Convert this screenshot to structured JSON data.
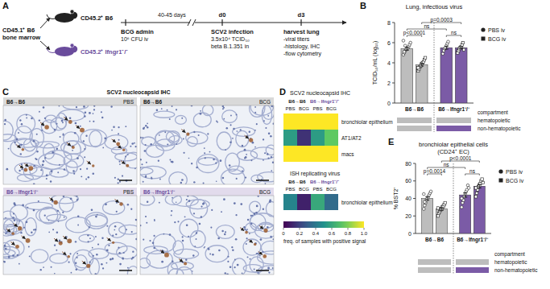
{
  "panel_labels": [
    "A",
    "B",
    "C",
    "D",
    "E"
  ],
  "schematic": {
    "donor": [
      "CD45.1⁺ B6",
      "bone marrow"
    ],
    "recipients": [
      "CD45.2⁺ B6",
      "CD45.2⁺ Ifngr1⁻/⁻"
    ],
    "interval": "40-45 days",
    "timepoints": [
      "d0",
      "d3"
    ],
    "steps": [
      {
        "title": "BCG admin",
        "lines": [
          "10⁶ CFU iv"
        ]
      },
      {
        "title": "SCV2 infection",
        "lines": [
          "3.5x10⁴ TCID₅₀",
          "beta B.1.351 in"
        ]
      },
      {
        "title": "harvest lung",
        "lines": [
          "-viral titers",
          "-histology, IHC",
          "-flow cytometry"
        ]
      }
    ]
  },
  "ihc": {
    "title": "SCV2 nucleocapsid IHC",
    "panels": [
      {
        "group": "B6→B6",
        "treatment": "PBS"
      },
      {
        "group": "B6→B6",
        "treatment": "BCG"
      },
      {
        "group": "B6→Ifngr1⁻/⁻",
        "treatment": "PBS"
      },
      {
        "group": "B6→Ifngr1⁻/⁻",
        "treatment": "BCG"
      }
    ]
  },
  "chart_data": [
    {
      "type": "bar",
      "title": "Lung, infectious virus",
      "y_label": "TCID₅₀/mL (log₁₀)",
      "categories": [
        "B6→B6",
        "B6→Ifngr1⁻/⁻"
      ],
      "series": [
        {
          "name": "PBS iv",
          "marker": "circle",
          "colors": [
            "#bdbdbd",
            "#7b5ba6"
          ],
          "values": [
            5.4,
            5.5
          ],
          "errors": [
            0.15,
            0.15
          ],
          "points": [
            [
              4.8,
              5.0,
              5.2,
              5.3,
              5.4,
              5.5,
              5.6,
              5.8,
              6.0,
              6.2,
              5.1,
              5.7
            ],
            [
              4.9,
              5.2,
              5.4,
              5.5,
              5.7,
              5.9,
              6.1
            ]
          ]
        },
        {
          "name": "BCG iv",
          "marker": "square",
          "colors": [
            "#bdbdbd",
            "#7b5ba6"
          ],
          "values": [
            3.8,
            5.5
          ],
          "errors": [
            0.13,
            0.12
          ],
          "points": [
            [
              3.2,
              3.4,
              3.6,
              3.7,
              3.9,
              4.0,
              4.1,
              4.3,
              4.5,
              3.5
            ],
            [
              5.0,
              5.2,
              5.4,
              5.5,
              5.6,
              5.8,
              6.0,
              5.3
            ]
          ]
        }
      ],
      "ylim": [
        0,
        8
      ],
      "yticks": [
        0,
        2,
        4,
        6,
        8
      ],
      "legend": "right",
      "annotations": [
        {
          "text": "p<0.0001",
          "between": [
            0,
            1
          ]
        },
        {
          "text": "ns",
          "between": [
            2,
            3
          ]
        },
        {
          "text": "ns",
          "between": [
            0,
            2
          ]
        },
        {
          "text": "p=0.0003",
          "between": [
            1,
            3
          ]
        }
      ],
      "compartment": {
        "label": "compartment",
        "rows": [
          "hematopoietic",
          "non-hematopoietic"
        ],
        "colors": [
          [
            "#bdbdbd",
            "#bdbdbd"
          ],
          [
            "#bdbdbd",
            "#7b5ba6"
          ]
        ]
      }
    },
    {
      "type": "heatmap",
      "title": "SCV2 nucleocapsid IHC",
      "groups": [
        "B6→B6",
        "B6→Ifngr1⁻/⁻"
      ],
      "categories": [
        "PBS",
        "BCG",
        "PBS",
        "BCG"
      ],
      "rows": [
        "bronchiolar epithelium",
        "AT1/AT2",
        "macs"
      ],
      "cells": [
        [
          1,
          1,
          1,
          1
        ],
        [
          0.55,
          0.15,
          0.55,
          0.75
        ],
        [
          1,
          1,
          1,
          1
        ]
      ],
      "colorbar_lim": [
        0,
        1
      ]
    },
    {
      "type": "heatmap",
      "title": "ISH replicating virus",
      "groups": [
        "B6→B6",
        "B6→Ifngr1⁻/⁻"
      ],
      "categories": [
        "PBS",
        "BCG",
        "PBS",
        "BCG"
      ],
      "rows": [
        "bronchiolar epithelium"
      ],
      "cells": [
        [
          0.45,
          0.1,
          0.6,
          0.35
        ]
      ],
      "colorbar_lim": [
        0,
        1
      ],
      "colorbar_ticks": [
        0,
        0.2,
        0.4,
        0.6,
        0.8,
        {
          "value": 1,
          "label": "1.0"
        }
      ],
      "colorbar_label": "freq. of samples with positive signal"
    },
    {
      "type": "bar",
      "title": "bronchiolar epithelial cells",
      "subtitle": "(CD24⁺ EC)",
      "y_label": "% BST2⁺",
      "categories": [
        "B6→B6",
        "B6→Ifngr1⁻/⁻"
      ],
      "series": [
        {
          "name": "PBS iv",
          "marker": "circle",
          "colors": [
            "#bdbdbd",
            "#7b5ba6"
          ],
          "values": [
            40,
            44
          ],
          "errors": [
            2,
            2.5
          ],
          "points": [
            [
              28,
              32,
              35,
              38,
              40,
              42,
              44,
              46,
              48,
              45,
              36
            ],
            [
              30,
              35,
              38,
              42,
              45,
              48,
              50,
              55,
              52,
              40
            ]
          ]
        },
        {
          "name": "BCG iv",
          "marker": "square",
          "colors": [
            "#bdbdbd",
            "#7b5ba6"
          ],
          "values": [
            28,
            54
          ],
          "errors": [
            1.5,
            2
          ],
          "points": [
            [
              20,
              23,
              25,
              27,
              28,
              30,
              31,
              33,
              35,
              29
            ],
            [
              42,
              46,
              50,
              53,
              55,
              57,
              60,
              62,
              58,
              52
            ]
          ]
        }
      ],
      "ylim": [
        0,
        80
      ],
      "yticks": [
        0,
        20,
        40,
        60,
        80
      ],
      "legend": "right",
      "annotations": [
        {
          "text": "p=0.0014",
          "between": [
            0,
            1
          ]
        },
        {
          "text": "ns",
          "between": [
            2,
            3
          ]
        },
        {
          "text": "ns",
          "between": [
            0,
            2
          ]
        },
        {
          "text": "p<0.0001",
          "between": [
            1,
            3
          ]
        }
      ],
      "compartment": {
        "label": "compartment",
        "rows": [
          "hematopoietic",
          "non-hematopoietic"
        ],
        "colors": [
          [
            "#bdbdbd",
            "#bdbdbd"
          ],
          [
            "#bdbdbd",
            "#7b5ba6"
          ]
        ]
      }
    }
  ]
}
